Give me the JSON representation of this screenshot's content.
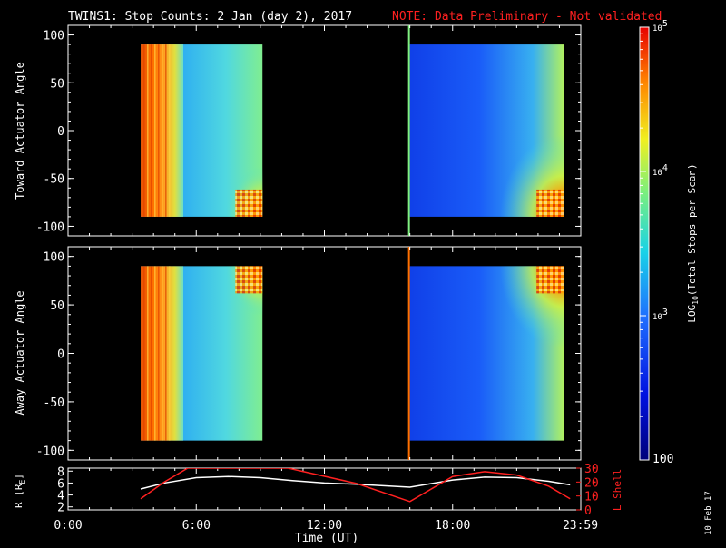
{
  "chart_data": {
    "title": "TWINS1: Stop Counts:  2 Jan (day   2), 2017",
    "note": "NOTE: Data Preliminary - Not validated",
    "date_stamp": "10 Feb 17",
    "xlabel": "Time (UT)",
    "x_tick_labels": [
      "0:00",
      "6:00",
      "12:00",
      "18:00",
      "23:59"
    ],
    "x_tick_hours": [
      0,
      6,
      12,
      18,
      23.98
    ],
    "xlim_hours": [
      0,
      24
    ],
    "colorbar": {
      "label": "LOG",
      "label_sub": "10",
      "label_rest": "(Total Stops per Scan)",
      "scale": "log",
      "range": [
        100,
        100000
      ],
      "tick_prefix": "10",
      "tick_exponents": [
        "5",
        "4",
        "3"
      ],
      "bottom_label": "100"
    },
    "panels": [
      {
        "type": "heatmap",
        "ylabel": "Toward Actuator Angle",
        "ylim": [
          -110,
          110
        ],
        "y_tick_labels": [
          "100",
          "50",
          "0",
          "-50",
          "-100"
        ],
        "y_tick_values": [
          100,
          50,
          0,
          -50,
          -100
        ],
        "data_blocks": [
          {
            "start_hour": 3.4,
            "end_hour": 9.1,
            "angle_range": [
              -90,
              90
            ]
          },
          {
            "start_hour": 16.0,
            "end_hour": 24.0,
            "angle_range": [
              -90,
              90
            ]
          }
        ]
      },
      {
        "type": "heatmap",
        "ylabel": "Away Actuator Angle",
        "ylim": [
          -110,
          110
        ],
        "y_tick_labels": [
          "100",
          "50",
          "0",
          "-50",
          "-100"
        ],
        "y_tick_values": [
          100,
          50,
          0,
          -50,
          -100
        ],
        "data_blocks": [
          {
            "start_hour": 3.4,
            "end_hour": 9.1,
            "angle_range": [
              -90,
              90
            ]
          },
          {
            "start_hour": 16.0,
            "end_hour": 24.0,
            "angle_range": [
              -90,
              90
            ]
          }
        ]
      }
    ],
    "orbit_panel": {
      "type": "line",
      "left_label": "R [R",
      "left_label_sub": "E",
      "left_label_end": "]",
      "left_ylim": [
        1.5,
        8.5
      ],
      "left_tick_labels": [
        "8",
        "6",
        "4",
        "2"
      ],
      "left_tick_values": [
        8,
        6,
        4,
        2
      ],
      "right_label": "L Shell",
      "right_ylim": [
        0,
        30
      ],
      "right_tick_labels": [
        "30",
        "20",
        "10",
        "0"
      ],
      "right_tick_values": [
        30,
        20,
        10,
        0
      ],
      "series": [
        {
          "name": "R",
          "color": "#ffffff",
          "axis": "left",
          "x": [
            3.4,
            4.5,
            6,
            7.5,
            9,
            10.5,
            12,
            13.5,
            16,
            18,
            19.5,
            21,
            22.5,
            23.5
          ],
          "y": [
            5.0,
            6.0,
            6.9,
            7.1,
            6.9,
            6.4,
            6.0,
            5.8,
            5.3,
            6.5,
            7.0,
            6.9,
            6.3,
            5.7
          ]
        },
        {
          "name": "L Shell",
          "color": "#ff2020",
          "axis": "right",
          "x": [
            3.4,
            4.5,
            5.6,
            10.3,
            13.5,
            16,
            18,
            19.5,
            21,
            22.5,
            23.5
          ],
          "y": [
            8,
            20,
            30,
            30,
            19,
            6,
            24,
            27.5,
            25,
            17,
            8
          ]
        }
      ]
    },
    "colors": {
      "axes": "#ffffff",
      "note": "#ff2020",
      "background": "#000000"
    }
  }
}
